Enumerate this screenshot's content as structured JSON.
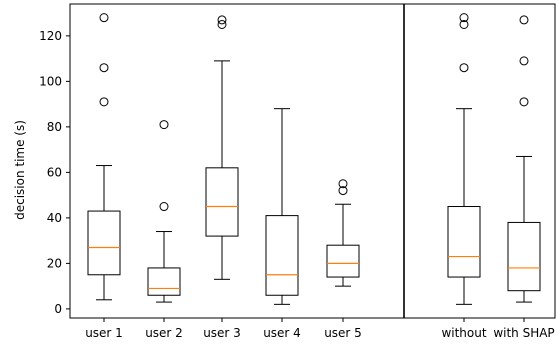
{
  "chart_data": {
    "type": "box",
    "ylabel": "decision time (s)",
    "ylim": [
      -4,
      134
    ],
    "yticks": [
      0,
      20,
      40,
      60,
      80,
      100,
      120
    ],
    "colors": {
      "median": "#ff7f0e",
      "box": "#000000",
      "background": "#ffffff"
    },
    "panels": [
      {
        "name": "users",
        "boxes": [
          {
            "label": "user 1",
            "whisker_low": 4,
            "q1": 15,
            "median": 27,
            "q3": 43,
            "whisker_high": 63,
            "outliers": [
              91,
              106,
              128
            ]
          },
          {
            "label": "user 2",
            "whisker_low": 3,
            "q1": 6,
            "median": 9,
            "q3": 18,
            "whisker_high": 34,
            "outliers": [
              45,
              81
            ]
          },
          {
            "label": "user 3",
            "whisker_low": 13,
            "q1": 32,
            "median": 45,
            "q3": 62,
            "whisker_high": 109,
            "outliers": [
              125,
              127
            ]
          },
          {
            "label": "user 4",
            "whisker_low": 2,
            "q1": 6,
            "median": 15,
            "q3": 41,
            "whisker_high": 88,
            "outliers": []
          },
          {
            "label": "user 5",
            "whisker_low": 10,
            "q1": 14,
            "median": 20,
            "q3": 28,
            "whisker_high": 46,
            "outliers": [
              52,
              55
            ]
          }
        ]
      },
      {
        "name": "conditions",
        "boxes": [
          {
            "label": "without",
            "whisker_low": 2,
            "q1": 14,
            "median": 23,
            "q3": 45,
            "whisker_high": 88,
            "outliers": [
              106,
              125,
              128
            ]
          },
          {
            "label": "with SHAP",
            "whisker_low": 3,
            "q1": 8,
            "median": 18,
            "q3": 38,
            "whisker_high": 67,
            "outliers": [
              91,
              109,
              127
            ]
          }
        ]
      }
    ]
  }
}
